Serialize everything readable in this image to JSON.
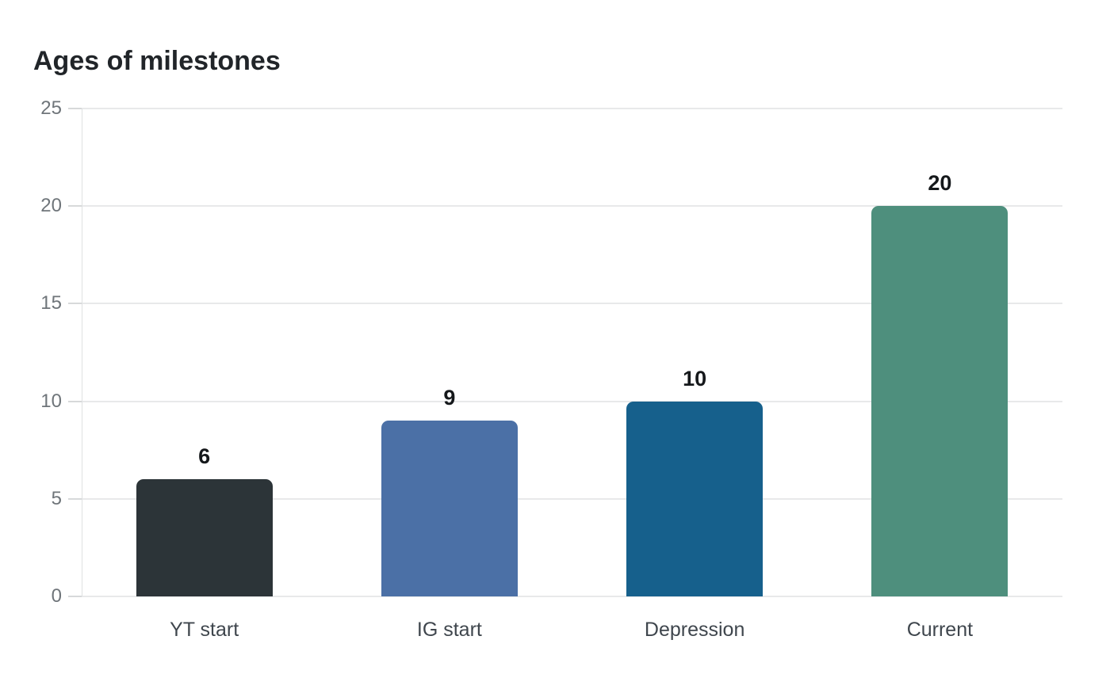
{
  "page": {
    "background_color": "#ffffff"
  },
  "chart_data": {
    "type": "bar",
    "title": "Ages of milestones",
    "categories": [
      "YT start",
      "IG start",
      "Depression",
      "Current"
    ],
    "values": [
      6,
      9,
      10,
      20
    ],
    "value_labels": [
      "6",
      "9",
      "10",
      "20"
    ],
    "bar_colors": [
      "#2c3438",
      "#4b70a6",
      "#16608c",
      "#4e8f7d"
    ],
    "xlabel": "",
    "ylabel": "",
    "ylim": [
      0,
      25
    ],
    "yticks": [
      0,
      5,
      10,
      15,
      20,
      25
    ],
    "ytick_labels": [
      "0",
      "5",
      "10",
      "15",
      "20",
      "25"
    ],
    "grid": "horizontal",
    "legend_position": "none",
    "style": {
      "title_color": "#212529",
      "gridline_color": "#e8e9ea",
      "axis_line_color": "#dfe1e2",
      "tick_mark_color": "#d7d9da",
      "ytick_label_color": "#6f757a",
      "category_label_color": "#3f464d",
      "value_label_color": "#15181b"
    }
  }
}
